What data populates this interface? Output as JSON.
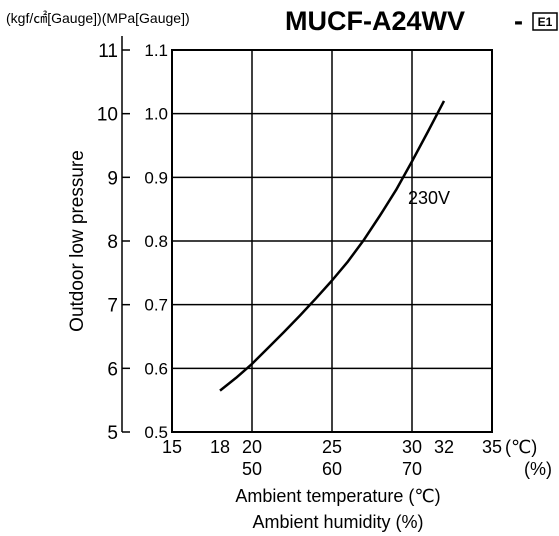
{
  "header": {
    "units_label": "(kgf/㎠[Gauge])(MPa[Gauge])",
    "model": "MUCF-A24WV",
    "suffix_dash": "-",
    "suffix_badge": "E1"
  },
  "chart_data": {
    "type": "line",
    "title": "MUCF-A24WV",
    "xlabel": "Ambient temperature (℃)",
    "xlabel2": "Ambient humidity (%)",
    "ylabel": "Outdoor low pressure",
    "x_unit": "(℃)",
    "x2_unit": "(%)",
    "xlim": [
      15,
      35
    ],
    "ylim_mpa": [
      0.5,
      1.1
    ],
    "ylim_kgf": [
      5,
      11
    ],
    "x_ticks": [
      "15",
      "18",
      "20",
      "25",
      "30",
      "32",
      "35"
    ],
    "x_ticks_values": [
      15,
      18,
      20,
      25,
      30,
      32,
      35
    ],
    "humidity_ticks": [
      "50",
      "60",
      "70"
    ],
    "humidity_ticks_at": [
      20,
      25,
      30
    ],
    "y_ticks_mpa": [
      "0.5",
      "0.6",
      "0.7",
      "0.8",
      "0.9",
      "1.0",
      "1.1"
    ],
    "y_ticks_mpa_values": [
      0.5,
      0.6,
      0.7,
      0.8,
      0.9,
      1.0,
      1.1
    ],
    "y_ticks_kgf": [
      "5",
      "6",
      "7",
      "8",
      "9",
      "10",
      "11"
    ],
    "grid": true,
    "series": [
      {
        "name": "230V",
        "x": [
          18,
          19,
          20,
          21,
          22,
          23,
          24,
          25,
          26,
          27,
          28,
          29,
          30,
          31,
          32
        ],
        "y": [
          0.565,
          0.585,
          0.607,
          0.632,
          0.657,
          0.683,
          0.71,
          0.738,
          0.768,
          0.802,
          0.84,
          0.88,
          0.925,
          0.972,
          1.02
        ]
      }
    ]
  }
}
